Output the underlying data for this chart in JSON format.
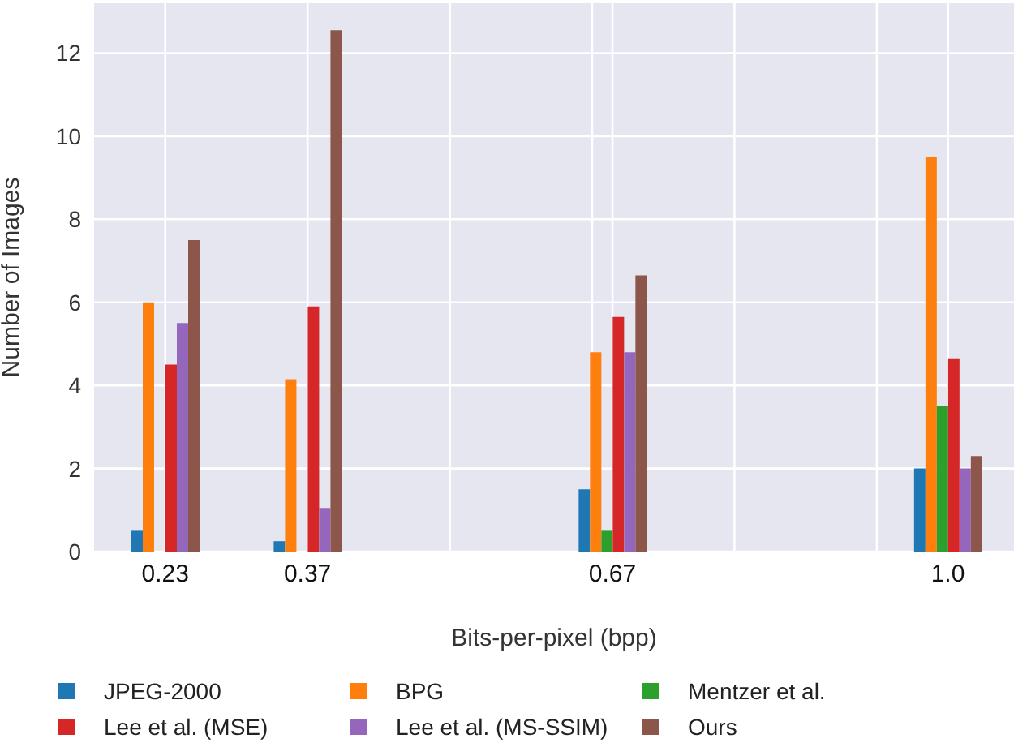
{
  "chart_data": {
    "type": "bar",
    "xlabel": "Bits-per-pixel (bpp)",
    "ylabel": "Number of Images",
    "x": [
      0.23,
      0.37,
      0.67,
      1.0
    ],
    "series": [
      {
        "name": "JPEG-2000",
        "color": "#1f77b4",
        "values": [
          0.5,
          0.25,
          1.5,
          2
        ]
      },
      {
        "name": "BPG",
        "color": "#ff7f0e",
        "values": [
          6,
          4.15,
          4.8,
          9.5
        ]
      },
      {
        "name": "Mentzer et al.",
        "color": "#2ca02c",
        "values": [
          0,
          0,
          0.5,
          3.5
        ]
      },
      {
        "name": "Lee et al. (MSE)",
        "color": "#d62728",
        "values": [
          4.5,
          5.9,
          5.65,
          4.65
        ]
      },
      {
        "name": "Lee et al. (MS-SSIM)",
        "color": "#9467bd",
        "values": [
          5.5,
          1.05,
          4.8,
          2
        ]
      },
      {
        "name": "Ours",
        "color": "#8c564b",
        "values": [
          7.5,
          12.55,
          6.65,
          2.3
        ]
      }
    ],
    "xlim": [
      0.16,
      1.065
    ],
    "xticks": [
      0.23,
      0.37,
      {
        "value": 0.51,
        "label": null
      },
      {
        "value": 0.65,
        "label": null
      },
      0.67,
      {
        "value": 0.79,
        "label": null
      },
      {
        "value": 0.93,
        "label": null
      },
      {
        "value": 1.0,
        "label": "1.0"
      }
    ],
    "ylim": [
      0,
      13.2
    ],
    "yticks": [
      0,
      2,
      4,
      6,
      8,
      10,
      12
    ],
    "grid": true,
    "legend": "bottom"
  }
}
